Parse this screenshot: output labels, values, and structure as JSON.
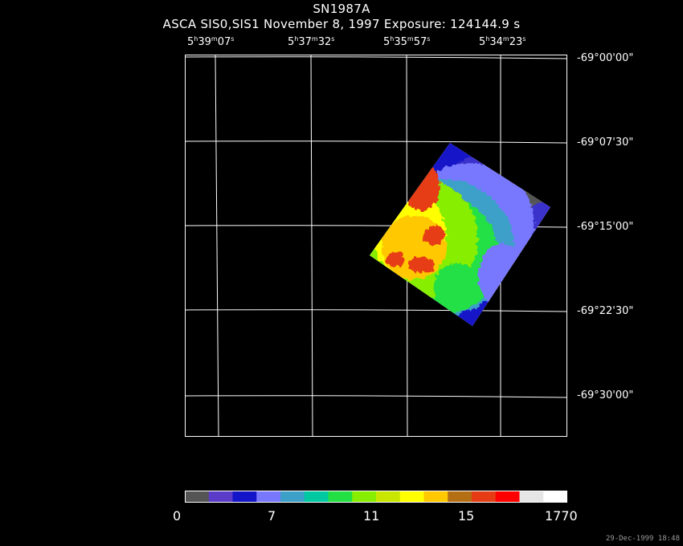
{
  "title": "SN1987A",
  "subtitle": "ASCA SIS0,SIS1 November 8, 1997 Exposure: 124144.9 s",
  "ra_labels": [
    {
      "h": "5",
      "m": "39",
      "s": "07"
    },
    {
      "h": "5",
      "m": "37",
      "s": "32"
    },
    {
      "h": "5",
      "m": "35",
      "s": "57"
    },
    {
      "h": "5",
      "m": "34",
      "s": "23"
    }
  ],
  "dec_labels": [
    "-69°00'00\"",
    "-69°07'30\"",
    "-69°15'00\"",
    "-69°22'30\"",
    "-69°30'00\""
  ],
  "colorbar": {
    "colors": [
      "#555555",
      "#5a3cc8",
      "#1414c8",
      "#7878ff",
      "#3ca0c8",
      "#00c8a0",
      "#22e044",
      "#88ee00",
      "#c8e600",
      "#ffff00",
      "#ffc800",
      "#b46e14",
      "#e63c14",
      "#ff0000",
      "#e6e6e6",
      "#ffffff"
    ],
    "tick_labels": [
      "0",
      "7",
      "11",
      "15",
      "1770"
    ]
  },
  "footer": "29-Dec-1999 18:48",
  "image_colors": {
    "background": "#000000",
    "grid": "#ffffff"
  }
}
